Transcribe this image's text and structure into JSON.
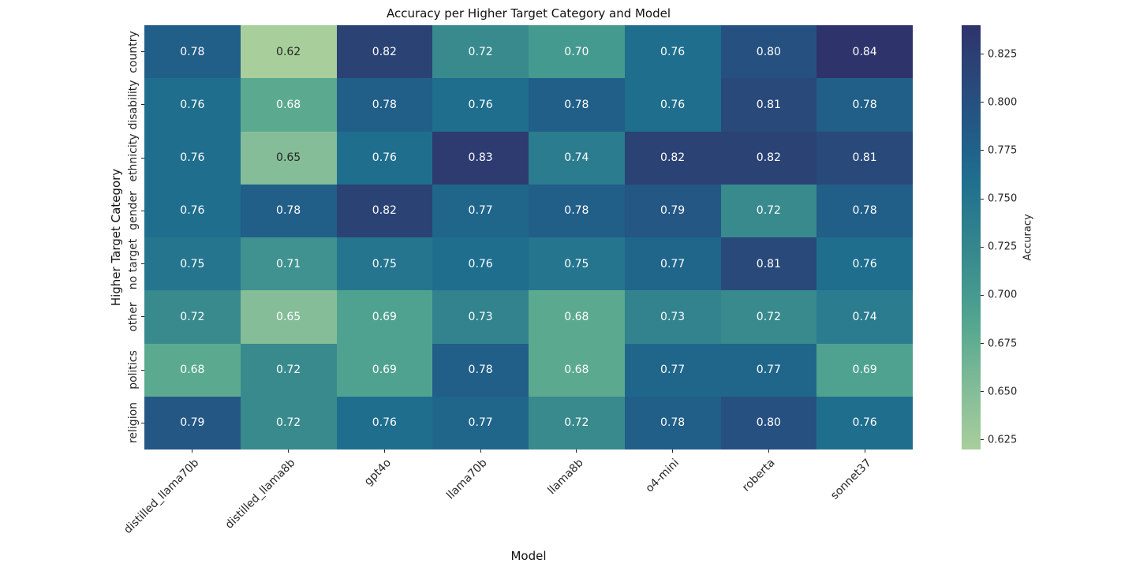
{
  "title": "Accuracy per Higher Target Category and Model",
  "chart_data": {
    "type": "heatmap",
    "title": "Accuracy per Higher Target Category and Model",
    "xlabel": "Model",
    "ylabel": "Higher Target Category",
    "x_categories": [
      "distilled_llama70b",
      "distilled_llama8b",
      "gpt4o",
      "llama70b",
      "llama8b",
      "o4-mini",
      "roberta",
      "sonnet37"
    ],
    "y_categories": [
      "country",
      "disability",
      "ethnicity",
      "gender",
      "no target",
      "other",
      "politics",
      "religion"
    ],
    "values": [
      [
        0.78,
        0.62,
        0.82,
        0.72,
        0.7,
        0.76,
        0.8,
        0.84
      ],
      [
        0.76,
        0.68,
        0.78,
        0.76,
        0.78,
        0.76,
        0.81,
        0.78
      ],
      [
        0.76,
        0.65,
        0.76,
        0.83,
        0.74,
        0.82,
        0.82,
        0.81
      ],
      [
        0.76,
        0.78,
        0.82,
        0.77,
        0.78,
        0.79,
        0.72,
        0.78
      ],
      [
        0.75,
        0.71,
        0.75,
        0.76,
        0.75,
        0.77,
        0.81,
        0.76
      ],
      [
        0.72,
        0.65,
        0.69,
        0.73,
        0.68,
        0.73,
        0.72,
        0.74
      ],
      [
        0.68,
        0.72,
        0.69,
        0.78,
        0.68,
        0.77,
        0.77,
        0.69
      ],
      [
        0.79,
        0.72,
        0.76,
        0.77,
        0.72,
        0.78,
        0.8,
        0.76
      ]
    ],
    "value_decimals": 2,
    "colorbar": {
      "label": "Accuracy",
      "vmin": 0.62,
      "vmax": 0.84,
      "tick_labels": [
        "0.825",
        "0.800",
        "0.775",
        "0.750",
        "0.725",
        "0.700",
        "0.675",
        "0.650",
        "0.625"
      ]
    },
    "colormap": {
      "name": "crest",
      "stops": [
        {
          "v": 0.62,
          "c": "#a8ce9b"
        },
        {
          "v": 0.65,
          "c": "#85bd98"
        },
        {
          "v": 0.68,
          "c": "#5baa90"
        },
        {
          "v": 0.7,
          "c": "#459a90"
        },
        {
          "v": 0.72,
          "c": "#388a8d"
        },
        {
          "v": 0.74,
          "c": "#2b7c8e"
        },
        {
          "v": 0.76,
          "c": "#1f6e8e"
        },
        {
          "v": 0.78,
          "c": "#215e88"
        },
        {
          "v": 0.8,
          "c": "#265080"
        },
        {
          "v": 0.82,
          "c": "#2b4274"
        },
        {
          "v": 0.84,
          "c": "#2f336b"
        }
      ]
    },
    "annotation_colors": {
      "light": "#ffffff",
      "dark": "#262626"
    },
    "annotation_dark_text_cells": [
      [
        0,
        1
      ],
      [
        2,
        1
      ]
    ],
    "grid": false,
    "legend_position": "colorbar-right"
  }
}
